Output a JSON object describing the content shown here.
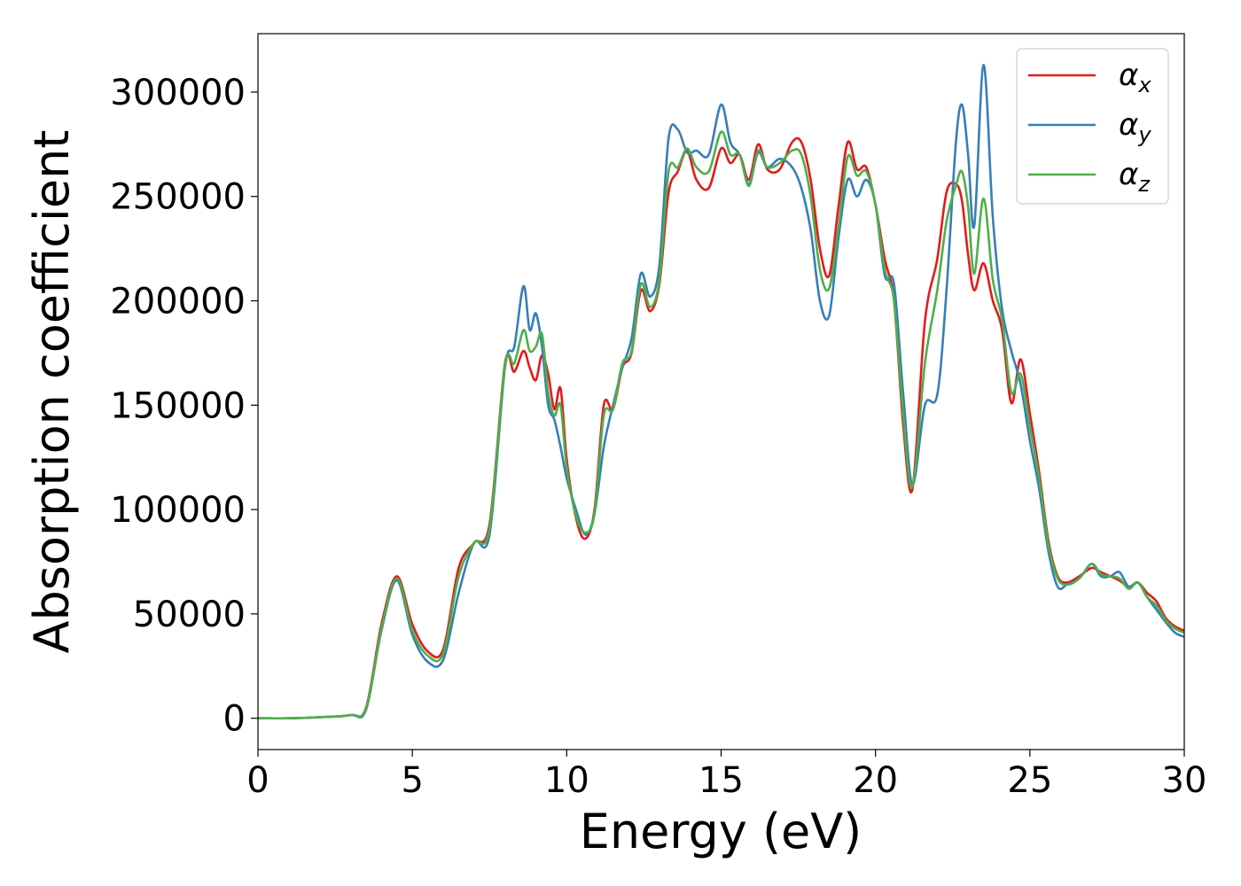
{
  "chart_data": {
    "type": "line",
    "xlabel": "Energy (eV)",
    "ylabel": "Absorption coefficient",
    "xlim": [
      0,
      30
    ],
    "ylim": [
      -15000,
      328000
    ],
    "xticks": [
      0,
      5,
      10,
      15,
      20,
      25,
      30
    ],
    "xtick_labels": [
      "0",
      "5",
      "10",
      "15",
      "20",
      "25",
      "30"
    ],
    "yticks": [
      0,
      50000,
      100000,
      150000,
      200000,
      250000,
      300000
    ],
    "ytick_labels": [
      "0",
      "50000",
      "100000",
      "150000",
      "200000",
      "250000",
      "300000"
    ],
    "grid": false,
    "legend_position": "top-right",
    "series": [
      {
        "name": "α_x",
        "legend_base": "α",
        "legend_sub": "x",
        "color": "#e41a1c",
        "x": [
          0,
          1,
          2,
          3,
          3.5,
          4,
          4.5,
          5,
          5.5,
          6,
          6.5,
          7,
          7.5,
          8,
          8.3,
          8.6,
          8.8,
          9,
          9.2,
          9.4,
          9.6,
          9.8,
          10,
          10.3,
          10.6,
          10.9,
          11.2,
          11.5,
          11.8,
          12.1,
          12.4,
          12.7,
          13,
          13.3,
          13.6,
          13.9,
          14.2,
          14.6,
          15,
          15.3,
          15.6,
          15.9,
          16.2,
          16.5,
          16.9,
          17.3,
          17.6,
          17.9,
          18.2,
          18.5,
          18.8,
          19.1,
          19.4,
          19.7,
          20,
          20.3,
          20.6,
          20.9,
          21.2,
          21.6,
          22,
          22.3,
          22.6,
          22.8,
          23,
          23.2,
          23.5,
          23.8,
          24.1,
          24.4,
          24.7,
          25,
          25.3,
          25.6,
          25.9,
          26.2,
          26.6,
          27,
          27.3,
          27.6,
          27.9,
          28.2,
          28.5,
          28.8,
          29.1,
          29.4,
          29.7,
          30
        ],
        "y": [
          0,
          0,
          500,
          1500,
          5000,
          45000,
          68000,
          45000,
          32000,
          33000,
          72000,
          84000,
          93000,
          170000,
          166000,
          176000,
          168000,
          162000,
          174000,
          165000,
          148000,
          158000,
          124000,
          96000,
          86000,
          100000,
          150000,
          148000,
          168000,
          175000,
          205000,
          195000,
          208000,
          252000,
          262000,
          272000,
          258000,
          254000,
          273000,
          266000,
          270000,
          258000,
          275000,
          263000,
          263000,
          276000,
          276000,
          258000,
          225000,
          212000,
          245000,
          276000,
          263000,
          264000,
          246000,
          220000,
          200000,
          140000,
          110000,
          190000,
          220000,
          252000,
          256000,
          248000,
          222000,
          205000,
          218000,
          200000,
          186000,
          151000,
          172000,
          146000,
          118000,
          85000,
          68000,
          65000,
          68000,
          72000,
          70000,
          68000,
          66000,
          63000,
          65000,
          60000,
          56000,
          48000,
          44000,
          42000
        ]
      },
      {
        "name": "α_y",
        "legend_base": "α",
        "legend_sub": "y",
        "color": "#377eb8",
        "x": [
          0,
          1,
          2,
          3,
          3.5,
          4,
          4.5,
          5,
          5.5,
          6,
          6.5,
          7,
          7.5,
          8,
          8.3,
          8.6,
          8.8,
          9,
          9.2,
          9.4,
          9.6,
          9.8,
          10,
          10.3,
          10.6,
          10.9,
          11.2,
          11.5,
          11.8,
          12.1,
          12.4,
          12.7,
          13,
          13.3,
          13.6,
          13.9,
          14.2,
          14.6,
          15,
          15.3,
          15.6,
          15.9,
          16.2,
          16.5,
          16.9,
          17.3,
          17.6,
          17.9,
          18.2,
          18.5,
          18.8,
          19.1,
          19.4,
          19.7,
          20,
          20.3,
          20.6,
          20.9,
          21.2,
          21.6,
          22,
          22.3,
          22.6,
          22.8,
          23,
          23.2,
          23.5,
          23.8,
          24.1,
          24.4,
          24.7,
          25,
          25.3,
          25.6,
          25.9,
          26.2,
          26.6,
          27,
          27.3,
          27.6,
          27.9,
          28.2,
          28.5,
          28.8,
          29.1,
          29.4,
          29.7,
          30
        ],
        "y": [
          0,
          0,
          500,
          1500,
          4000,
          42000,
          66000,
          40000,
          27000,
          28000,
          60000,
          84000,
          88000,
          168000,
          178000,
          207000,
          186000,
          194000,
          178000,
          150000,
          143000,
          130000,
          115000,
          100000,
          88000,
          98000,
          130000,
          150000,
          168000,
          182000,
          213000,
          202000,
          217000,
          278000,
          282000,
          271000,
          272000,
          270000,
          294000,
          276000,
          270000,
          256000,
          271000,
          264000,
          268000,
          264000,
          254000,
          234000,
          200000,
          193000,
          230000,
          258000,
          250000,
          258000,
          246000,
          212000,
          208000,
          155000,
          112000,
          150000,
          155000,
          205000,
          275000,
          294000,
          270000,
          236000,
          313000,
          240000,
          196000,
          176000,
          160000,
          133000,
          110000,
          80000,
          63000,
          64000,
          67000,
          74000,
          68000,
          68000,
          70000,
          63000,
          65000,
          58000,
          52000,
          46000,
          41000,
          39000
        ]
      },
      {
        "name": "α_z",
        "legend_base": "α",
        "legend_sub": "z",
        "color": "#4daf4a",
        "x": [
          0,
          1,
          2,
          3,
          3.5,
          4,
          4.5,
          5,
          5.5,
          6,
          6.5,
          7,
          7.5,
          8,
          8.3,
          8.6,
          8.8,
          9,
          9.2,
          9.4,
          9.6,
          9.8,
          10,
          10.3,
          10.6,
          10.9,
          11.2,
          11.5,
          11.8,
          12.1,
          12.4,
          12.7,
          13,
          13.3,
          13.6,
          13.9,
          14.2,
          14.6,
          15,
          15.3,
          15.6,
          15.9,
          16.2,
          16.5,
          16.9,
          17.3,
          17.6,
          17.9,
          18.2,
          18.5,
          18.8,
          19.1,
          19.4,
          19.7,
          20,
          20.3,
          20.6,
          20.9,
          21.2,
          21.6,
          22,
          22.3,
          22.6,
          22.8,
          23,
          23.2,
          23.5,
          23.8,
          24.1,
          24.4,
          24.7,
          25,
          25.3,
          25.6,
          25.9,
          26.2,
          26.6,
          27,
          27.3,
          27.6,
          27.9,
          28.2,
          28.5,
          28.8,
          29.1,
          29.4,
          29.7,
          30
        ],
        "y": [
          0,
          0,
          500,
          1500,
          4500,
          43000,
          67000,
          42000,
          30000,
          31000,
          68000,
          84000,
          91000,
          169000,
          170000,
          186000,
          176000,
          178000,
          184000,
          156000,
          145000,
          150000,
          120000,
          97000,
          89000,
          98000,
          145000,
          148000,
          170000,
          176000,
          208000,
          197000,
          210000,
          262000,
          264000,
          273000,
          264000,
          262000,
          281000,
          270000,
          270000,
          255000,
          272000,
          264000,
          266000,
          272000,
          270000,
          250000,
          215000,
          206000,
          235000,
          269000,
          260000,
          262000,
          246000,
          215000,
          200000,
          145000,
          111000,
          170000,
          205000,
          238000,
          255000,
          262000,
          245000,
          213000,
          249000,
          210000,
          191000,
          156000,
          165000,
          140000,
          115000,
          83000,
          67000,
          64000,
          67000,
          74000,
          69000,
          68000,
          67000,
          62000,
          65000,
          58000,
          54000,
          47000,
          43000,
          41000
        ]
      }
    ]
  }
}
